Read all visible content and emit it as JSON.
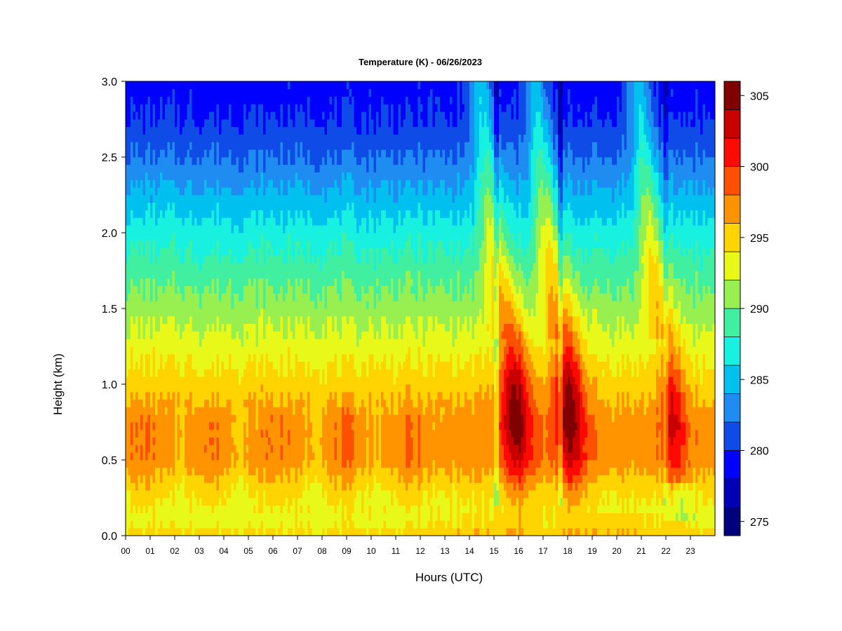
{
  "chart_data": {
    "type": "heatmap",
    "title": "Temperature (K) - 06/26/2023",
    "xlabel": "Hours (UTC)",
    "ylabel": "Height (km)",
    "x_ticks": [
      "00",
      "01",
      "02",
      "03",
      "04",
      "05",
      "06",
      "07",
      "08",
      "09",
      "10",
      "11",
      "12",
      "13",
      "14",
      "15",
      "16",
      "17",
      "18",
      "19",
      "20",
      "21",
      "22",
      "23"
    ],
    "xlim": [
      0,
      24
    ],
    "y_ticks": [
      "0.0",
      "0.5",
      "1.0",
      "1.5",
      "2.0",
      "2.5",
      "3.0"
    ],
    "ylim": [
      0,
      3
    ],
    "colorbar": {
      "ticks": [
        "275",
        "280",
        "285",
        "290",
        "295",
        "300",
        "305"
      ],
      "range": [
        274,
        306
      ],
      "levels": [
        {
          "from": 274,
          "to": 276,
          "color": "#00007f"
        },
        {
          "from": 276,
          "to": 278,
          "color": "#0000b4"
        },
        {
          "from": 278,
          "to": 280,
          "color": "#0000ff"
        },
        {
          "from": 280,
          "to": 282,
          "color": "#0f4be6"
        },
        {
          "from": 282,
          "to": 284,
          "color": "#1e8cf0"
        },
        {
          "from": 284,
          "to": 286,
          "color": "#00c0f0"
        },
        {
          "from": 286,
          "to": 288,
          "color": "#18f0e0"
        },
        {
          "from": 288,
          "to": 290,
          "color": "#40f0a0"
        },
        {
          "from": 290,
          "to": 292,
          "color": "#98f050"
        },
        {
          "from": 292,
          "to": 294,
          "color": "#e8f818"
        },
        {
          "from": 294,
          "to": 296,
          "color": "#ffd400"
        },
        {
          "from": 296,
          "to": 298,
          "color": "#ff9400"
        },
        {
          "from": 298,
          "to": 300,
          "color": "#ff5000"
        },
        {
          "from": 300,
          "to": 302,
          "color": "#ff0a00"
        },
        {
          "from": 302,
          "to": 304,
          "color": "#c80000"
        },
        {
          "from": 304,
          "to": 306,
          "color": "#800000"
        }
      ]
    },
    "profile": {
      "heights_km": [
        0.0,
        0.1,
        0.3,
        0.5,
        0.75,
        1.0,
        1.25,
        1.5,
        1.75,
        2.0,
        2.25,
        2.5,
        2.75,
        3.0
      ],
      "night_K": [
        295,
        293,
        294.5,
        297,
        297,
        295,
        293,
        291,
        289,
        287,
        284.5,
        282,
        280,
        279
      ]
    },
    "warm_plumes": [
      {
        "center_hour": 15.9,
        "peak_K": 305
      },
      {
        "center_hour": 18.1,
        "peak_K": 305
      },
      {
        "center_hour": 22.3,
        "peak_K": 302
      }
    ],
    "cold_streaks_hour": [
      15.1,
      17.7,
      22.0
    ]
  }
}
